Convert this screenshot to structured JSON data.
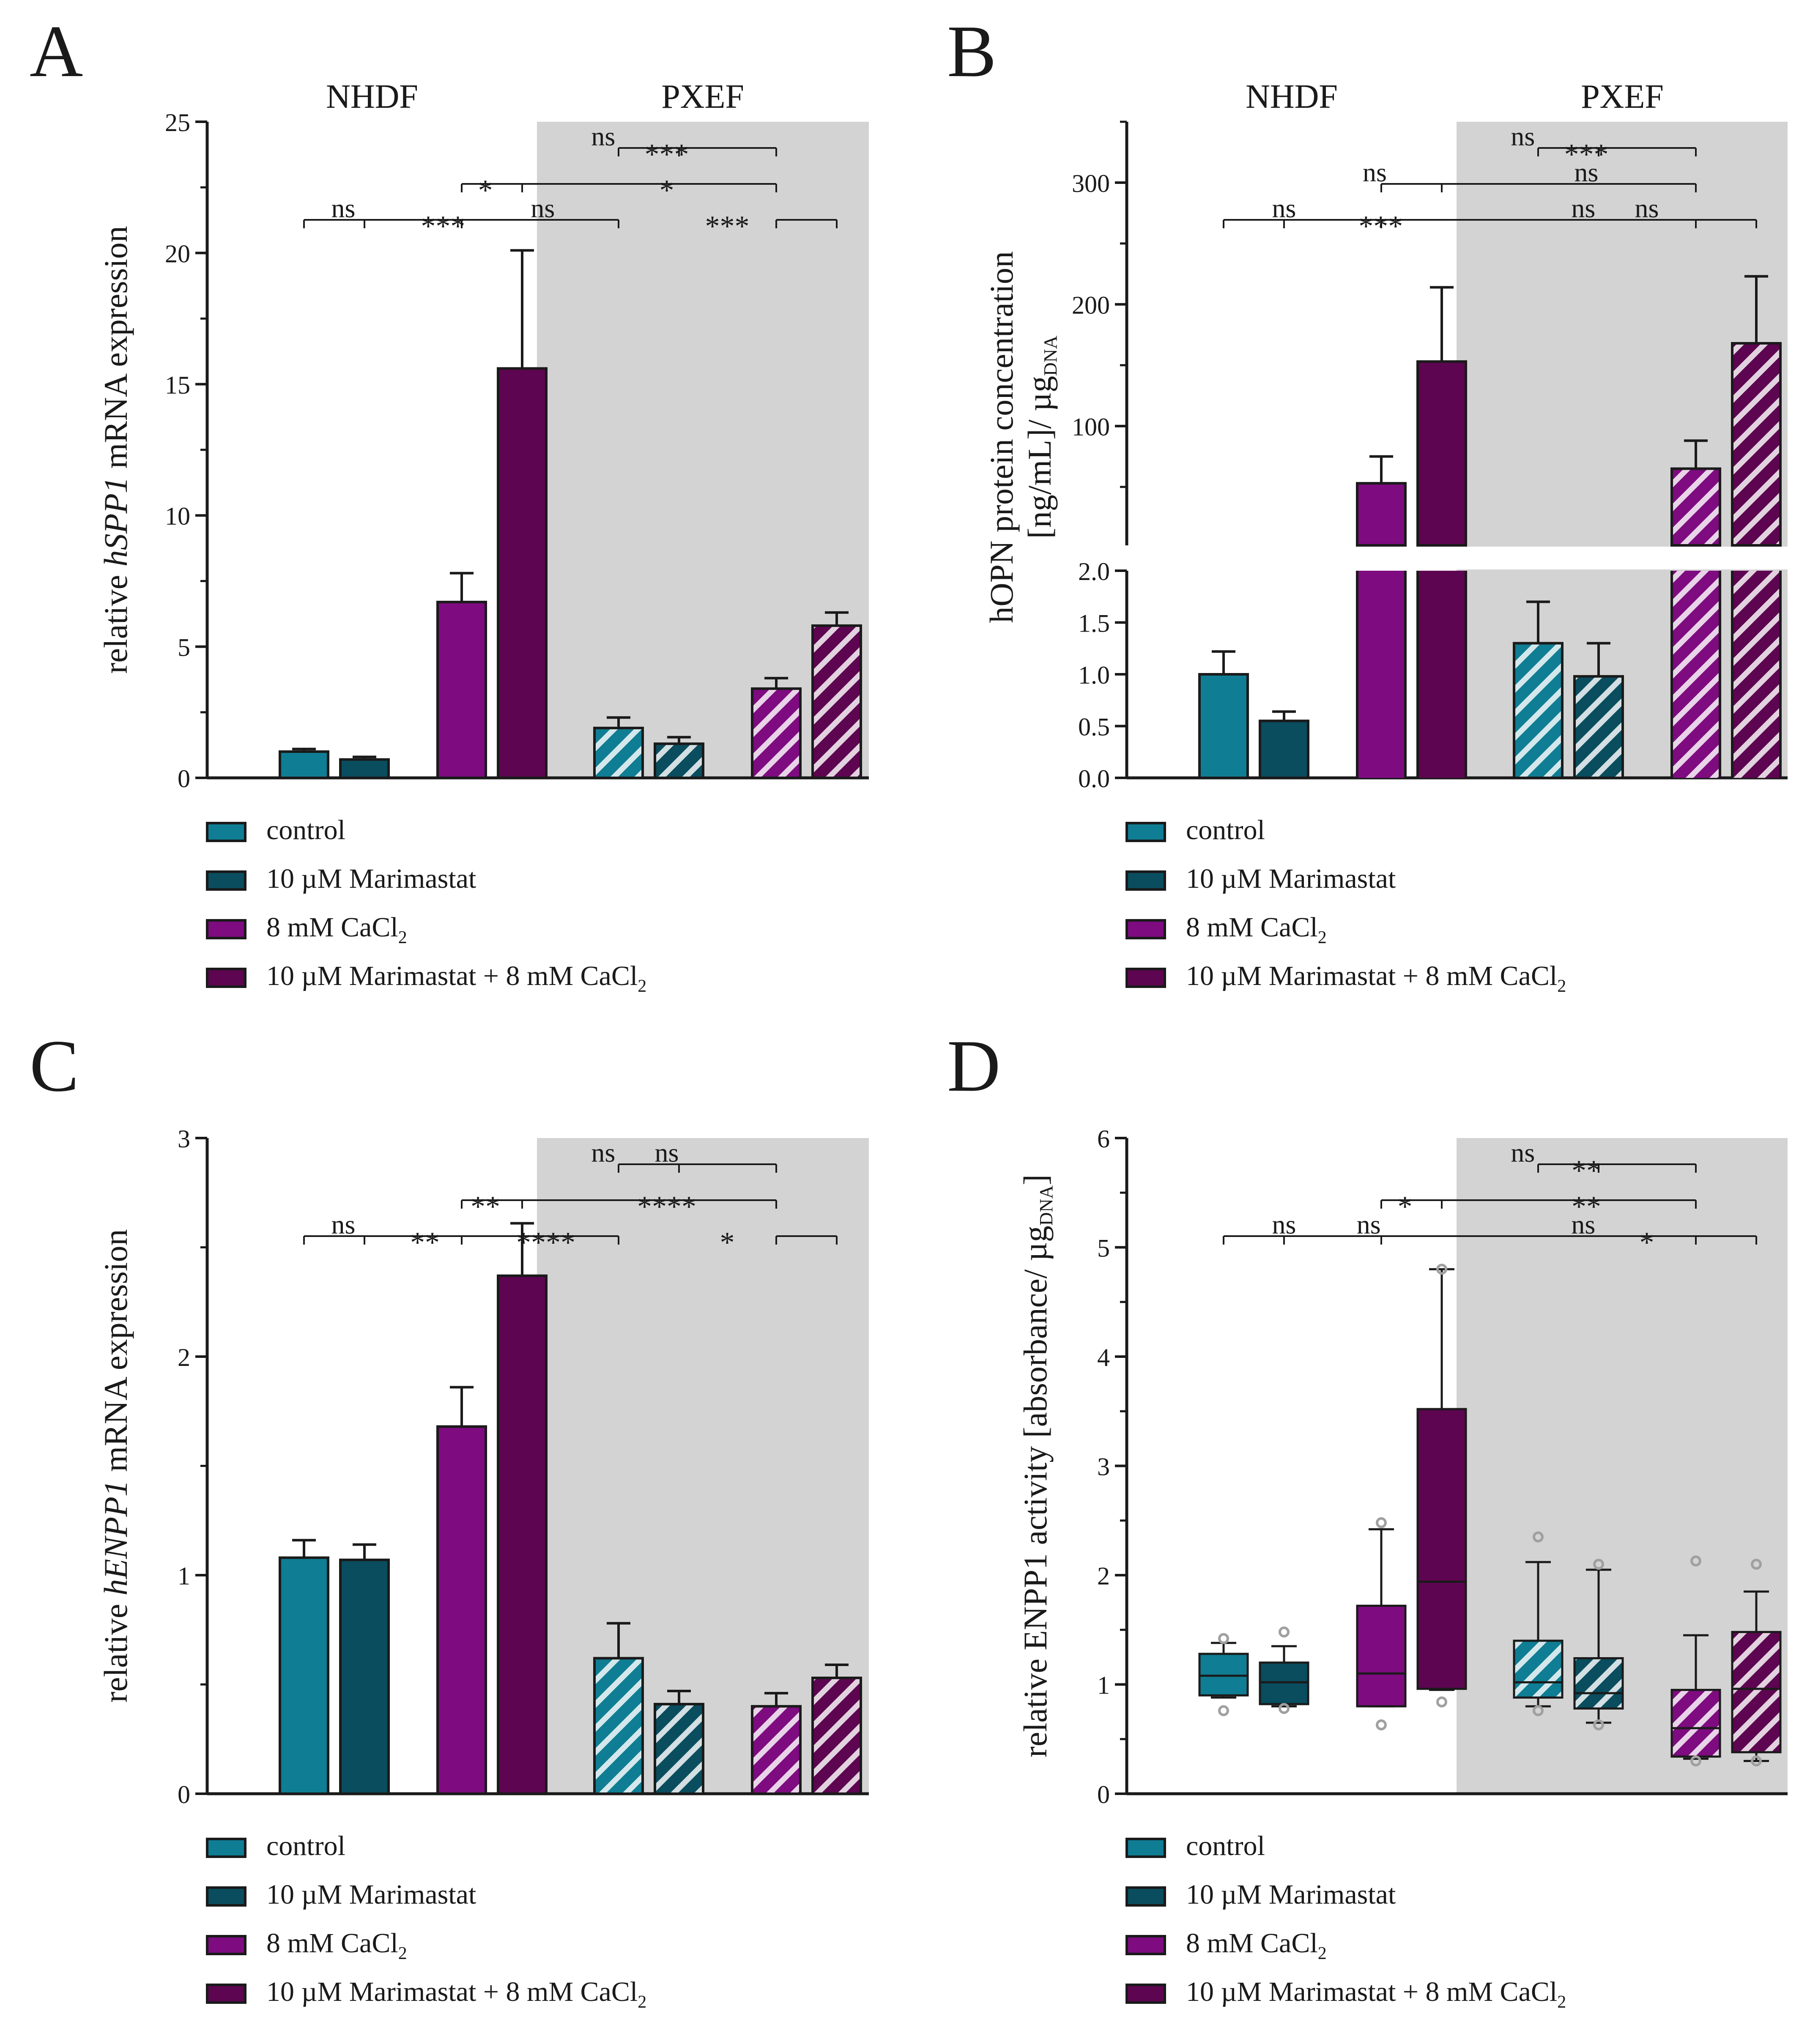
{
  "colors": {
    "control": "#0f7d93",
    "marimastat": "#094d5e",
    "cacl2": "#7e0b80",
    "combo": "#5d0550",
    "pxef_background": "#d3d3d3",
    "axis": "#1a1a1a",
    "outlier": "#a0a0a0"
  },
  "groups": [
    "NHDF",
    "PXEF"
  ],
  "legend": [
    {
      "key": "control",
      "label": "control"
    },
    {
      "key": "marimastat",
      "label": "10 µM Marimastat"
    },
    {
      "key": "cacl2",
      "label": "8 mM CaCl",
      "sub": "2"
    },
    {
      "key": "combo",
      "label": "10 µM Marimastat + 8 mM CaCl",
      "sub": "2"
    }
  ],
  "chart_data": [
    {
      "panel": "A",
      "type": "bar",
      "ylabel_pre": "relative ",
      "ylabel_italic": "hSPP1",
      "ylabel_post": " mRNA expression",
      "ylim": [
        0,
        25
      ],
      "yticks": [
        0,
        5,
        10,
        15,
        20,
        25
      ],
      "series": [
        {
          "name": "control",
          "group": "NHDF",
          "values": [
            1.0
          ],
          "error": [
            0.1
          ],
          "hatched": false
        },
        {
          "name": "10 µM Marimastat",
          "group": "NHDF",
          "values": [
            0.7
          ],
          "error": [
            0.1
          ],
          "hatched": false
        },
        {
          "name": "8 mM CaCl2",
          "group": "NHDF",
          "values": [
            6.7
          ],
          "error": [
            1.1
          ],
          "hatched": false
        },
        {
          "name": "10 µM Marimastat + 8 mM CaCl2",
          "group": "NHDF",
          "values": [
            15.6
          ],
          "error": [
            4.5
          ],
          "hatched": false
        },
        {
          "name": "control",
          "group": "PXEF",
          "values": [
            1.9
          ],
          "error": [
            0.4
          ],
          "hatched": true
        },
        {
          "name": "10 µM Marimastat",
          "group": "PXEF",
          "values": [
            1.3
          ],
          "error": [
            0.25
          ],
          "hatched": true
        },
        {
          "name": "8 mM CaCl2",
          "group": "PXEF",
          "values": [
            3.4
          ],
          "error": [
            0.4
          ],
          "hatched": true
        },
        {
          "name": "10 µM Marimastat + 8 mM CaCl2",
          "group": "PXEF",
          "values": [
            5.8
          ],
          "error": [
            0.5
          ],
          "hatched": true
        }
      ],
      "significance": [
        {
          "level": 3,
          "left_bar": 0,
          "right_bar": 4,
          "label": "ns",
          "label_bar": 0.65,
          "anchors": [
            1
          ]
        },
        {
          "level": 3,
          "left_bar": 0,
          "right_bar": 4,
          "label": "***",
          "label_bar": 2.3,
          "anchors": [
            2
          ]
        },
        {
          "level": 3,
          "left_bar": 0,
          "right_bar": 4,
          "label": "ns",
          "label_bar": 3.95,
          "anchors": [
            4
          ]
        },
        {
          "level": 2,
          "left_bar": 2,
          "right_bar": 6,
          "label": "*",
          "label_bar": 3.0,
          "anchors": [
            3
          ]
        },
        {
          "level": 2,
          "left_bar": 2,
          "right_bar": 6,
          "label": "*",
          "label_bar": 6.0,
          "anchors": []
        },
        {
          "level": 1,
          "left_bar": 4,
          "right_bar": 6,
          "label": "ns",
          "label_bar": 4.95,
          "anchors": [
            5
          ]
        },
        {
          "level": 1,
          "left_bar": 4,
          "right_bar": 6,
          "label": "***",
          "label_bar": 6.0,
          "anchors": []
        },
        {
          "level": 3,
          "left_bar": 6,
          "right_bar": 7,
          "label": "***",
          "label_bar": 7.0,
          "anchors": [
            7
          ]
        }
      ]
    },
    {
      "panel": "B",
      "type": "bar",
      "ylabel_line1": "hOPN protein concentration",
      "ylabel_line2": "[ng/mL]/ µg",
      "ylabel_sub": "DNA",
      "broken_axis": true,
      "ylim_lower": [
        0,
        2.0
      ],
      "ylim_upper": [
        2.0,
        350
      ],
      "yticks_lower": [
        0.0,
        0.5,
        1.0,
        1.5,
        2.0
      ],
      "yticks_upper": [
        100,
        200,
        300
      ],
      "series": [
        {
          "name": "control",
          "group": "NHDF",
          "values": [
            1.0
          ],
          "error": [
            0.22
          ],
          "hatched": false
        },
        {
          "name": "10 µM Marimastat",
          "group": "NHDF",
          "values": [
            0.55
          ],
          "error": [
            0.09
          ],
          "hatched": false
        },
        {
          "name": "8 mM CaCl2",
          "group": "NHDF",
          "values": [
            53
          ],
          "error": [
            22
          ],
          "hatched": false
        },
        {
          "name": "10 µM Marimastat + 8 mM CaCl2",
          "group": "NHDF",
          "values": [
            153
          ],
          "error": [
            61
          ],
          "hatched": false
        },
        {
          "name": "control",
          "group": "PXEF",
          "values": [
            1.3
          ],
          "error": [
            0.4
          ],
          "hatched": true
        },
        {
          "name": "10 µM Marimastat",
          "group": "PXEF",
          "values": [
            0.98
          ],
          "error": [
            0.32
          ],
          "hatched": true
        },
        {
          "name": "8 mM CaCl2",
          "group": "PXEF",
          "values": [
            65
          ],
          "error": [
            23
          ],
          "hatched": true
        },
        {
          "name": "10 µM Marimastat + 8 mM CaCl2",
          "group": "PXEF",
          "values": [
            168
          ],
          "error": [
            55
          ],
          "hatched": true
        }
      ],
      "significance": [
        {
          "level": 3,
          "left_bar": 0,
          "right_bar": 6,
          "label": "ns",
          "label_bar": 1.0,
          "anchors": [
            1
          ]
        },
        {
          "level": 3,
          "left_bar": 0,
          "right_bar": 6,
          "label": "***",
          "label_bar": 2.6,
          "anchors": [
            2
          ]
        },
        {
          "level": 3,
          "left_bar": 0,
          "right_bar": 6,
          "label": "ns",
          "label_bar": 5.95,
          "anchors": [
            6
          ]
        },
        {
          "level": 2,
          "left_bar": 2,
          "right_bar": 6,
          "label": "ns",
          "label_bar": 2.5,
          "anchors": [
            3
          ]
        },
        {
          "level": 2,
          "left_bar": 2,
          "right_bar": 6,
          "label": "ns",
          "label_bar": 6.0,
          "anchors": []
        },
        {
          "level": 1,
          "left_bar": 4,
          "right_bar": 6,
          "label": "ns",
          "label_bar": 4.95,
          "anchors": [
            5
          ]
        },
        {
          "level": 1,
          "left_bar": 4,
          "right_bar": 6,
          "label": "***",
          "label_bar": 6.0,
          "anchors": []
        },
        {
          "level": 3,
          "left_bar": 6,
          "right_bar": 7,
          "label": "ns",
          "label_bar": 7.0,
          "anchors": [
            7
          ]
        }
      ]
    },
    {
      "panel": "C",
      "type": "bar",
      "ylabel_pre": "relative ",
      "ylabel_italic": "hENPP1",
      "ylabel_post": " mRNA expression",
      "ylim": [
        0,
        3
      ],
      "yticks": [
        0,
        1,
        2,
        3
      ],
      "series": [
        {
          "name": "control",
          "group": "NHDF",
          "values": [
            1.08
          ],
          "error": [
            0.08
          ],
          "hatched": false
        },
        {
          "name": "10 µM Marimastat",
          "group": "NHDF",
          "values": [
            1.07
          ],
          "error": [
            0.07
          ],
          "hatched": false
        },
        {
          "name": "8 mM CaCl2",
          "group": "NHDF",
          "values": [
            1.68
          ],
          "error": [
            0.18
          ],
          "hatched": false
        },
        {
          "name": "10 µM Marimastat + 8 mM CaCl2",
          "group": "NHDF",
          "values": [
            2.37
          ],
          "error": [
            0.24
          ],
          "hatched": false
        },
        {
          "name": "control",
          "group": "PXEF",
          "values": [
            0.62
          ],
          "error": [
            0.16
          ],
          "hatched": true
        },
        {
          "name": "10 µM Marimastat",
          "group": "PXEF",
          "values": [
            0.41
          ],
          "error": [
            0.06
          ],
          "hatched": true
        },
        {
          "name": "8 mM CaCl2",
          "group": "PXEF",
          "values": [
            0.4
          ],
          "error": [
            0.06
          ],
          "hatched": true
        },
        {
          "name": "10 µM Marimastat + 8 mM CaCl2",
          "group": "PXEF",
          "values": [
            0.53
          ],
          "error": [
            0.06
          ],
          "hatched": true
        }
      ],
      "significance": [
        {
          "level": 3,
          "left_bar": 0,
          "right_bar": 4,
          "label": "ns",
          "label_bar": 0.65,
          "anchors": [
            1
          ]
        },
        {
          "level": 3,
          "left_bar": 0,
          "right_bar": 4,
          "label": "**",
          "label_bar": 2.0,
          "anchors": [
            2
          ]
        },
        {
          "level": 3,
          "left_bar": 0,
          "right_bar": 4,
          "label": "****",
          "label_bar": 4.0,
          "anchors": [
            4
          ]
        },
        {
          "level": 2,
          "left_bar": 2,
          "right_bar": 6,
          "label": "**",
          "label_bar": 3.0,
          "anchors": [
            3
          ]
        },
        {
          "level": 2,
          "left_bar": 2,
          "right_bar": 6,
          "label": "****",
          "label_bar": 6.0,
          "anchors": []
        },
        {
          "level": 1,
          "left_bar": 4,
          "right_bar": 6,
          "label": "ns",
          "label_bar": 4.95,
          "anchors": [
            5
          ]
        },
        {
          "level": 1,
          "left_bar": 4,
          "right_bar": 6,
          "label": "ns",
          "label_bar": 6.0,
          "anchors": []
        },
        {
          "level": 3,
          "left_bar": 6,
          "right_bar": 7,
          "label": "*",
          "label_bar": 7.0,
          "anchors": [
            7
          ]
        }
      ]
    },
    {
      "panel": "D",
      "type": "box",
      "ylabel_pre": "relative ENPP1 activity [absorbance/ µg",
      "ylabel_sub": "DNA",
      "ylabel_post": "]",
      "ylim": [
        0,
        6
      ],
      "yticks": [
        0,
        1,
        2,
        3,
        4,
        5,
        6
      ],
      "series": [
        {
          "name": "control",
          "group": "NHDF",
          "hatched": false,
          "whisker_low": 0.88,
          "q1": 0.9,
          "median": 1.08,
          "q3": 1.28,
          "whisker_high": 1.38,
          "outliers": [
            0.76,
            1.42
          ]
        },
        {
          "name": "10 µM Marimastat",
          "group": "NHDF",
          "hatched": false,
          "whisker_low": 0.8,
          "q1": 0.82,
          "median": 1.02,
          "q3": 1.2,
          "whisker_high": 1.35,
          "outliers": [
            0.78,
            1.48
          ]
        },
        {
          "name": "8 mM CaCl2",
          "group": "NHDF",
          "hatched": false,
          "whisker_low": 0.8,
          "q1": 0.8,
          "median": 1.1,
          "q3": 1.72,
          "whisker_high": 2.42,
          "outliers": [
            0.63,
            2.48
          ]
        },
        {
          "name": "10 µM Marimastat + 8 mM CaCl2",
          "group": "NHDF",
          "hatched": false,
          "whisker_low": 0.95,
          "q1": 0.96,
          "median": 1.94,
          "q3": 3.52,
          "whisker_high": 4.8,
          "outliers": [
            0.84,
            4.8
          ]
        },
        {
          "name": "control",
          "group": "PXEF",
          "hatched": true,
          "whisker_low": 0.8,
          "q1": 0.88,
          "median": 1.02,
          "q3": 1.4,
          "whisker_high": 2.12,
          "outliers": [
            0.76,
            2.35
          ]
        },
        {
          "name": "10 µM Marimastat",
          "group": "PXEF",
          "hatched": true,
          "whisker_low": 0.65,
          "q1": 0.78,
          "median": 0.92,
          "q3": 1.24,
          "whisker_high": 2.05,
          "outliers": [
            0.63,
            2.1
          ]
        },
        {
          "name": "8 mM CaCl2",
          "group": "PXEF",
          "hatched": true,
          "whisker_low": 0.32,
          "q1": 0.34,
          "median": 0.6,
          "q3": 0.95,
          "whisker_high": 1.45,
          "outliers": [
            0.3,
            2.13
          ]
        },
        {
          "name": "10 µM Marimastat + 8 mM CaCl2",
          "group": "PXEF",
          "hatched": true,
          "whisker_low": 0.3,
          "q1": 0.38,
          "median": 0.96,
          "q3": 1.48,
          "whisker_high": 1.85,
          "outliers": [
            0.3,
            2.1
          ]
        }
      ],
      "significance": [
        {
          "level": 3,
          "left_bar": 0,
          "right_bar": 6,
          "label": "ns",
          "label_bar": 1.0,
          "anchors": [
            1
          ]
        },
        {
          "level": 3,
          "left_bar": 0,
          "right_bar": 6,
          "label": "ns",
          "label_bar": 2.4,
          "anchors": [
            2
          ]
        },
        {
          "level": 3,
          "left_bar": 0,
          "right_bar": 6,
          "label": "ns",
          "label_bar": 5.95,
          "anchors": [
            6
          ]
        },
        {
          "level": 2,
          "left_bar": 2,
          "right_bar": 6,
          "label": "*",
          "label_bar": 3.0,
          "anchors": [
            3
          ]
        },
        {
          "level": 2,
          "left_bar": 2,
          "right_bar": 6,
          "label": "**",
          "label_bar": 6.0,
          "anchors": []
        },
        {
          "level": 1,
          "left_bar": 4,
          "right_bar": 6,
          "label": "ns",
          "label_bar": 4.95,
          "anchors": [
            5
          ]
        },
        {
          "level": 1,
          "left_bar": 4,
          "right_bar": 6,
          "label": "**",
          "label_bar": 6.0,
          "anchors": []
        },
        {
          "level": 3,
          "left_bar": 6,
          "right_bar": 7,
          "label": "*",
          "label_bar": 7.0,
          "anchors": [
            7
          ]
        }
      ]
    }
  ]
}
